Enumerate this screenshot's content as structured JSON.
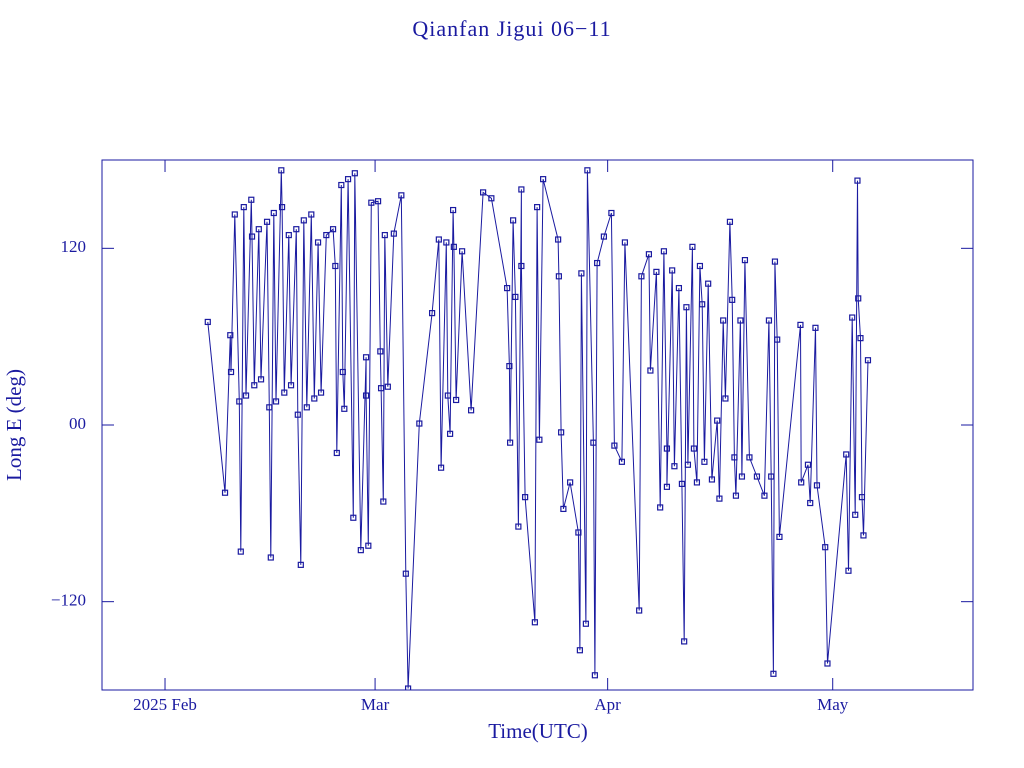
{
  "chart_data": {
    "type": "line",
    "title": "Qianfan Jigui 06−11",
    "xlabel": "Time(UTC)",
    "ylabel": "Long E (deg)",
    "color": "#1a1aa0",
    "marker": "square",
    "xlim": [
      -8.4,
      107.7
    ],
    "xticks": [
      {
        "value": 0,
        "label": "2025 Feb"
      },
      {
        "value": 28,
        "label": "Mar"
      },
      {
        "value": 59,
        "label": "Apr"
      },
      {
        "value": 89,
        "label": "May"
      }
    ],
    "ylim": [
      -180,
      180
    ],
    "yticks": [
      {
        "value": -120,
        "label": "−120"
      },
      {
        "value": 0,
        "label": "00"
      },
      120
    ],
    "x": [
      5.7,
      8.0,
      8.7,
      8.8,
      9.3,
      9.9,
      10.1,
      10.5,
      10.8,
      11.5,
      11.6,
      11.9,
      12.5,
      12.8,
      13.6,
      13.9,
      14.1,
      14.5,
      14.8,
      15.5,
      15.6,
      15.9,
      16.5,
      16.8,
      17.5,
      17.7,
      18.1,
      18.5,
      18.9,
      19.5,
      19.9,
      20.4,
      20.8,
      21.5,
      22.4,
      22.7,
      22.9,
      23.5,
      23.7,
      23.9,
      24.4,
      25.1,
      25.3,
      26.1,
      26.8,
      26.8,
      27.1,
      27.5,
      28.4,
      28.7,
      28.8,
      29.1,
      29.3,
      29.7,
      30.5,
      31.5,
      32.1,
      32.4,
      33.9,
      35.6,
      36.5,
      36.8,
      37.5,
      37.7,
      38.0,
      38.4,
      38.5,
      38.8,
      39.6,
      40.8,
      42.4,
      43.5,
      45.6,
      45.9,
      46.0,
      46.4,
      46.7,
      47.1,
      47.5,
      47.5,
      48.0,
      49.3,
      49.6,
      49.9,
      50.4,
      52.4,
      52.5,
      52.8,
      53.1,
      54.0,
      55.1,
      55.3,
      55.5,
      56.1,
      56.3,
      57.1,
      57.3,
      57.6,
      58.5,
      59.5,
      59.9,
      60.9,
      61.3,
      63.2,
      63.5,
      64.5,
      64.7,
      65.5,
      66.0,
      66.5,
      66.9,
      66.9,
      67.6,
      67.9,
      68.5,
      68.9,
      69.2,
      69.5,
      69.7,
      70.3,
      70.5,
      70.9,
      71.3,
      71.6,
      71.9,
      72.4,
      72.9,
      73.6,
      73.9,
      74.4,
      74.7,
      75.3,
      75.6,
      75.9,
      76.1,
      76.7,
      76.9,
      77.3,
      77.9,
      78.9,
      79.9,
      80.5,
      80.8,
      81.1,
      81.3,
      81.6,
      81.9,
      84.7,
      84.8,
      85.7,
      86.0,
      86.7,
      86.9,
      88.0,
      88.3,
      90.8,
      91.1,
      91.6,
      92.0,
      92.3,
      92.4,
      92.7,
      92.9,
      93.1,
      93.7
    ],
    "values": [
      70,
      -46,
      61,
      36,
      143,
      16,
      -86,
      148,
      20,
      153,
      128,
      27,
      133,
      31,
      138,
      12,
      -90,
      144,
      16,
      173,
      148,
      22,
      129,
      27,
      133,
      7,
      -95,
      139,
      12,
      143,
      18,
      124,
      22,
      129,
      133,
      108,
      -19,
      163,
      36,
      11,
      167,
      -63,
      171,
      -85,
      46,
      20,
      -82,
      151,
      152,
      50,
      25,
      -52,
      129,
      26,
      130,
      156,
      -101,
      -179,
      1,
      76,
      126,
      -29,
      124,
      20,
      -6,
      146,
      121,
      17,
      118,
      10,
      158,
      154,
      93,
      40,
      -12,
      139,
      87,
      -69,
      160,
      108,
      -49,
      -134,
      148,
      -10,
      167,
      126,
      101,
      -5,
      -57,
      -39,
      -73,
      -153,
      103,
      -135,
      173,
      -12,
      -170,
      110,
      128,
      144,
      -14,
      -25,
      124,
      -126,
      101,
      116,
      37,
      104,
      -56,
      118,
      -16,
      -42,
      105,
      -28,
      93,
      -40,
      -147,
      80,
      -27,
      121,
      -16,
      -39,
      108,
      82,
      -25,
      96,
      -37,
      3,
      -50,
      71,
      18,
      138,
      85,
      -22,
      -48,
      71,
      -35,
      112,
      -22,
      -35,
      -48,
      71,
      -35,
      -169,
      111,
      58,
      -76,
      68,
      -39,
      -27,
      -53,
      66,
      -41,
      -83,
      -162,
      -20,
      -99,
      73,
      -61,
      166,
      86,
      59,
      -49,
      -75,
      44
    ]
  }
}
